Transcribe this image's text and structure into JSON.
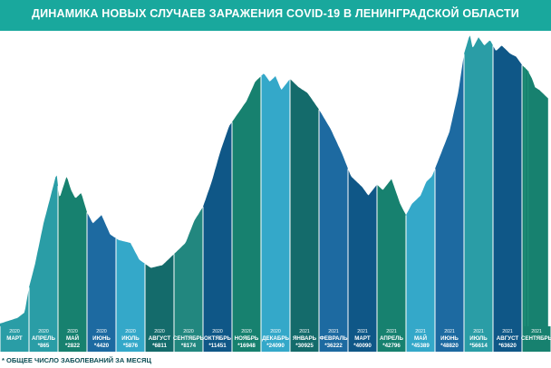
{
  "title": "ДИНАМИКА НОВЫХ СЛУЧАЕВ ЗАРАЖЕНИЯ COVID-19 В ЛЕНИНГРАДСКОЙ ОБЛАСТИ",
  "footnote": "* ОБЩЕЕ ЧИСЛО ЗАБОЛЕВАНИЙ ЗА МЕСЯЦ",
  "colors": {
    "banner": "#19a89d",
    "palette": [
      "#2a9da6",
      "#17816f",
      "#1d6aa1",
      "#34a8c9",
      "#146b6b",
      "#22877f",
      "#0f5787"
    ]
  },
  "chart_data": {
    "type": "area",
    "title": "ДИНАМИКА НОВЫХ СЛУЧАЕВ ЗАРАЖЕНИЯ COVID-19 В ЛЕНИНГРАДСКОЙ ОБЛАСТИ",
    "note": "* ОБЩЕЕ ЧИСЛО ЗАБОЛЕВАНИЙ ЗА МЕСЯЦ",
    "months": [
      {
        "year": "2020",
        "month": "МАРТ",
        "total": ""
      },
      {
        "year": "2020",
        "month": "АПРЕЛЬ",
        "total": "*865"
      },
      {
        "year": "2020",
        "month": "МАЙ",
        "total": "*2822"
      },
      {
        "year": "2020",
        "month": "ИЮНЬ",
        "total": "*4420"
      },
      {
        "year": "2020",
        "month": "ИЮЛЬ",
        "total": "*5876"
      },
      {
        "year": "2020",
        "month": "АВГУСТ",
        "total": "*6811"
      },
      {
        "year": "2020",
        "month": "СЕНТЯБРЬ",
        "total": "*8174"
      },
      {
        "year": "2020",
        "month": "ОКТЯБРЬ",
        "total": "*11451"
      },
      {
        "year": "2020",
        "month": "НОЯБРЬ",
        "total": "*16948"
      },
      {
        "year": "2020",
        "month": "ДЕКАБРЬ",
        "total": "*24090"
      },
      {
        "year": "2021",
        "month": "ЯНВАРЬ",
        "total": "*30925"
      },
      {
        "year": "2021",
        "month": "ФЕВРАЛЬ",
        "total": "*36222"
      },
      {
        "year": "2021",
        "month": "МАРТ",
        "total": "*40090"
      },
      {
        "year": "2021",
        "month": "АПРЕЛЬ",
        "total": "*42796"
      },
      {
        "year": "2021",
        "month": "МАЙ",
        "total": "*45389"
      },
      {
        "year": "2021",
        "month": "ИЮНЬ",
        "total": "*48820"
      },
      {
        "year": "2021",
        "month": "ИЮЛЬ",
        "total": "*56614"
      },
      {
        "year": "2021",
        "month": "АВГУСТ",
        "total": "*63620"
      },
      {
        "year": "2021",
        "month": "СЕНТЯБРЬ",
        "total": ""
      }
    ],
    "curve": [
      [
        0,
        1
      ],
      [
        0.3,
        2
      ],
      [
        0.6,
        3
      ],
      [
        0.85,
        5
      ],
      [
        1.0,
        14
      ],
      [
        1.2,
        22
      ],
      [
        1.5,
        37
      ],
      [
        1.7,
        45
      ],
      [
        1.95,
        55
      ],
      [
        2.05,
        46
      ],
      [
        2.3,
        54
      ],
      [
        2.45,
        49
      ],
      [
        2.6,
        46
      ],
      [
        2.8,
        48
      ],
      [
        3.0,
        41
      ],
      [
        3.2,
        37
      ],
      [
        3.5,
        40
      ],
      [
        3.8,
        33
      ],
      [
        4.1,
        31
      ],
      [
        4.5,
        30
      ],
      [
        4.8,
        24
      ],
      [
        5.2,
        21
      ],
      [
        5.6,
        22
      ],
      [
        6.0,
        26
      ],
      [
        6.4,
        30
      ],
      [
        6.7,
        38
      ],
      [
        7.0,
        43
      ],
      [
        7.3,
        52
      ],
      [
        7.6,
        63
      ],
      [
        7.9,
        72
      ],
      [
        8.1,
        75
      ],
      [
        8.5,
        81
      ],
      [
        8.8,
        88
      ],
      [
        9.1,
        91
      ],
      [
        9.3,
        88
      ],
      [
        9.5,
        90
      ],
      [
        9.7,
        85
      ],
      [
        10.0,
        89
      ],
      [
        10.3,
        86
      ],
      [
        10.6,
        84
      ],
      [
        11.0,
        78
      ],
      [
        11.4,
        71
      ],
      [
        11.8,
        62
      ],
      [
        12.1,
        54
      ],
      [
        12.5,
        50
      ],
      [
        12.7,
        47
      ],
      [
        13.0,
        51
      ],
      [
        13.2,
        49
      ],
      [
        13.5,
        53
      ],
      [
        13.8,
        44
      ],
      [
        14.0,
        40
      ],
      [
        14.2,
        44
      ],
      [
        14.5,
        47
      ],
      [
        14.7,
        52
      ],
      [
        14.9,
        54
      ],
      [
        15.2,
        62
      ],
      [
        15.5,
        70
      ],
      [
        15.8,
        84
      ],
      [
        16.0,
        98
      ],
      [
        16.2,
        105
      ],
      [
        16.3,
        100
      ],
      [
        16.5,
        104
      ],
      [
        16.7,
        101
      ],
      [
        16.9,
        103
      ],
      [
        17.1,
        99
      ],
      [
        17.3,
        101
      ],
      [
        17.6,
        98
      ],
      [
        17.8,
        97
      ],
      [
        18.0,
        94
      ],
      [
        18.2,
        92
      ],
      [
        18.35,
        89
      ],
      [
        18.45,
        86
      ],
      [
        18.6,
        85
      ],
      [
        18.7,
        84
      ],
      [
        18.8,
        83
      ],
      [
        18.9,
        82
      ]
    ]
  }
}
